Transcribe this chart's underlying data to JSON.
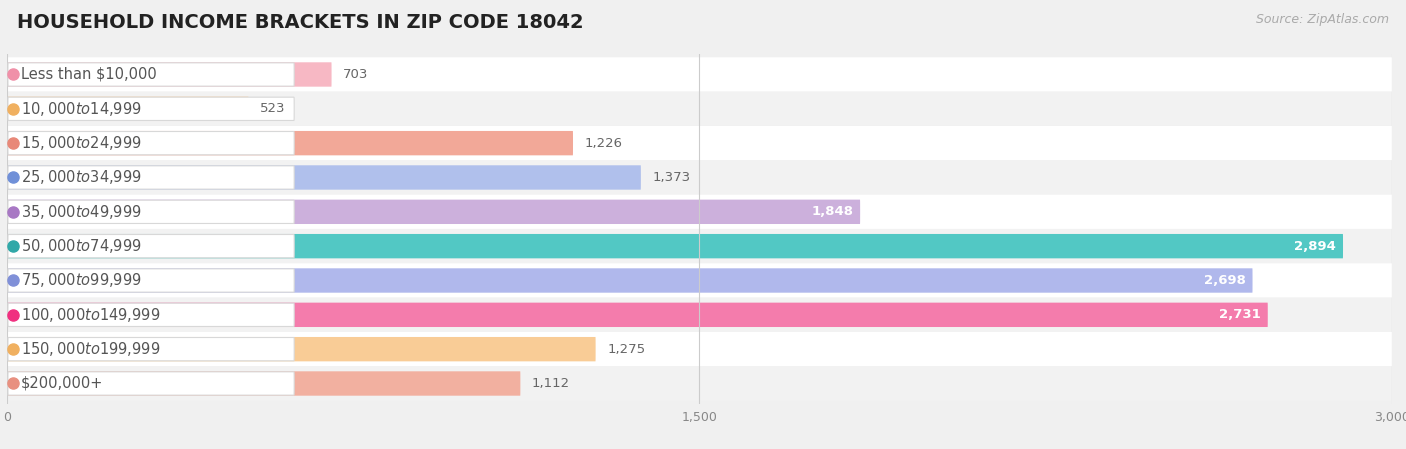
{
  "title": "HOUSEHOLD INCOME BRACKETS IN ZIP CODE 18042",
  "source": "Source: ZipAtlas.com",
  "categories": [
    "Less than $10,000",
    "$10,000 to $14,999",
    "$15,000 to $24,999",
    "$25,000 to $34,999",
    "$35,000 to $49,999",
    "$50,000 to $74,999",
    "$75,000 to $99,999",
    "$100,000 to $149,999",
    "$150,000 to $199,999",
    "$200,000+"
  ],
  "values": [
    703,
    523,
    1226,
    1373,
    1848,
    2894,
    2698,
    2731,
    1275,
    1112
  ],
  "bar_colors": [
    "#f7b8c4",
    "#f9cc96",
    "#f2a898",
    "#b0c0ec",
    "#ccb0dc",
    "#52c8c4",
    "#b0b8ec",
    "#f47cac",
    "#f9cc96",
    "#f2b0a0"
  ],
  "dot_colors": [
    "#f090a8",
    "#f0b060",
    "#e88878",
    "#7090d8",
    "#a878c4",
    "#30a8a8",
    "#8090d8",
    "#f03080",
    "#f0b060",
    "#e89080"
  ],
  "row_bg_colors": [
    "#ffffff",
    "#f2f2f2"
  ],
  "xlim": [
    0,
    3000
  ],
  "xticks": [
    0,
    1500,
    3000
  ],
  "background_color": "#f0f0f0",
  "title_fontsize": 14,
  "source_fontsize": 9,
  "label_fontsize": 10.5,
  "value_fontsize": 9.5,
  "value_threshold": 1700
}
